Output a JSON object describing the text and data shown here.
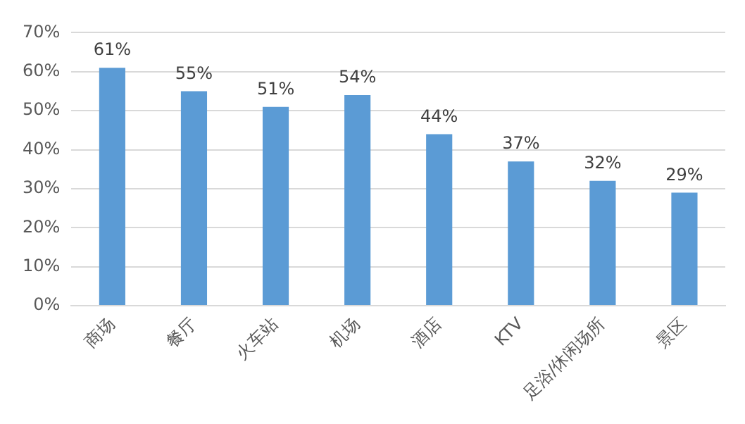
{
  "chart_data": {
    "type": "bar",
    "categories": [
      "商场",
      "餐厅",
      "火车站",
      "机场",
      "酒店",
      "KTV",
      "足浴/休闲场所",
      "景区"
    ],
    "values": [
      61,
      55,
      51,
      54,
      44,
      37,
      32,
      29
    ],
    "value_labels": [
      "61%",
      "55%",
      "51%",
      "54%",
      "44%",
      "37%",
      "32%",
      "29%"
    ],
    "color": "#5b9bd5",
    "ylim": [
      0,
      70
    ],
    "yticks": [
      {
        "value": 0,
        "label": "0%"
      },
      {
        "value": 10,
        "label": "10%"
      },
      {
        "value": 20,
        "label": "20%"
      },
      {
        "value": 30,
        "label": "30%"
      },
      {
        "value": 40,
        "label": "40%"
      },
      {
        "value": 50,
        "label": "50%"
      },
      {
        "value": 60,
        "label": "60%"
      },
      {
        "value": 70,
        "label": "70%"
      }
    ],
    "grid": "y",
    "legend": false
  }
}
